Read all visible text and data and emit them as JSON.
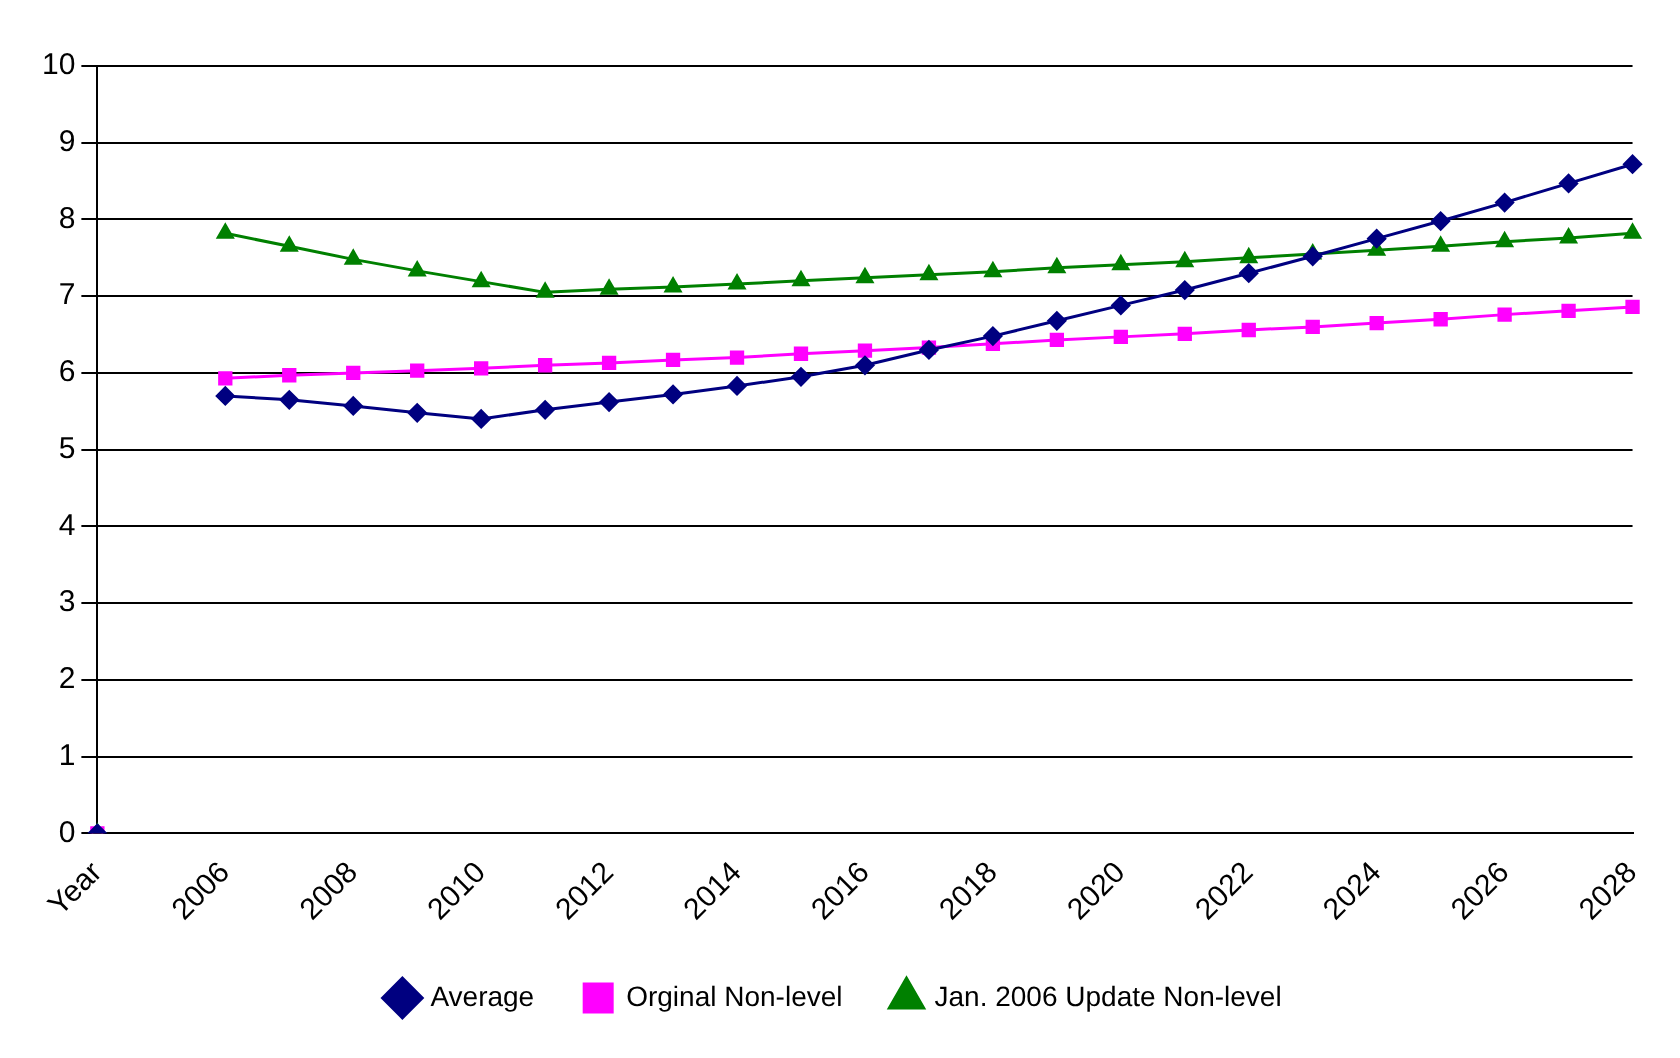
{
  "chart_data": {
    "type": "line",
    "categories": [
      "Year",
      null,
      "2006",
      null,
      "2008",
      null,
      "2010",
      null,
      "2012",
      null,
      "2014",
      null,
      "2016",
      null,
      "2018",
      null,
      "2020",
      null,
      "2022",
      null,
      "2024",
      null,
      "2026",
      null,
      "2028"
    ],
    "series": [
      {
        "name": "Average",
        "color": "#000080",
        "marker": "diamond",
        "values": [
          0,
          null,
          5.7,
          5.65,
          5.57,
          5.48,
          5.4,
          5.52,
          5.62,
          5.72,
          5.83,
          5.95,
          6.1,
          6.3,
          6.48,
          6.68,
          6.88,
          7.08,
          7.3,
          7.52,
          7.75,
          7.98,
          8.22,
          8.47,
          8.72
        ]
      },
      {
        "name": "Orginal Non-level",
        "color": "#ff00ff",
        "marker": "square",
        "values": [
          0,
          null,
          5.93,
          5.97,
          6.0,
          6.03,
          6.06,
          6.1,
          6.13,
          6.17,
          6.2,
          6.25,
          6.29,
          6.33,
          6.38,
          6.43,
          6.47,
          6.51,
          6.56,
          6.6,
          6.65,
          6.7,
          6.76,
          6.81,
          6.86
        ]
      },
      {
        "name": "Jan. 2006 Update Non-level",
        "color": "#008000",
        "marker": "triangle",
        "values": [
          0,
          null,
          7.82,
          7.65,
          7.48,
          7.33,
          7.19,
          7.05,
          7.09,
          7.12,
          7.16,
          7.2,
          7.24,
          7.28,
          7.32,
          7.37,
          7.41,
          7.45,
          7.5,
          7.55,
          7.6,
          7.65,
          7.71,
          7.76,
          7.82
        ]
      }
    ],
    "ylim": [
      0,
      10
    ],
    "yticks": [
      0,
      1,
      2,
      3,
      4,
      5,
      6,
      7,
      8,
      9,
      10
    ],
    "grid": "y",
    "legend": "bottom",
    "line_style": "solid"
  }
}
